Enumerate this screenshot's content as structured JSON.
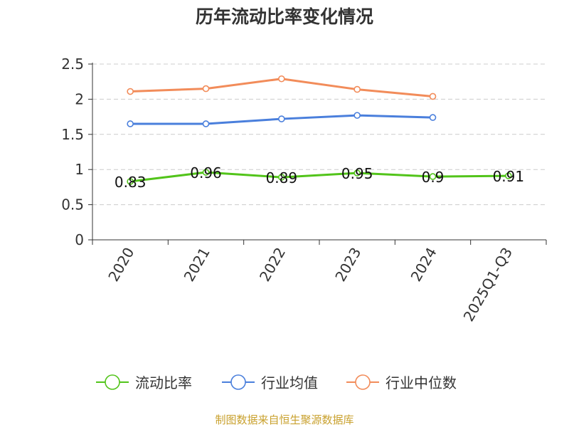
{
  "chart_data": {
    "type": "line",
    "title": "历年流动比率变化情况",
    "categories": [
      "2020",
      "2021",
      "2022",
      "2023",
      "2024",
      "2025Q1-Q3"
    ],
    "ylim": [
      0,
      2.5
    ],
    "yticks": [
      "0",
      "0.5",
      "1",
      "1.5",
      "2",
      "2.5"
    ],
    "ytick_values": [
      0,
      0.5,
      1,
      1.5,
      2,
      2.5
    ],
    "grid": true,
    "legend_position": "bottom",
    "series": [
      {
        "name": "流动比率",
        "color": "#52c41a",
        "values": [
          0.83,
          0.96,
          0.89,
          0.95,
          0.9,
          0.91
        ],
        "labels": [
          "0.83",
          "0.96",
          "0.89",
          "0.95",
          "0.9",
          "0.91"
        ]
      },
      {
        "name": "行业均值",
        "color": "#4a7fdc",
        "values": [
          1.65,
          1.65,
          1.72,
          1.77,
          1.74,
          null
        ]
      },
      {
        "name": "行业中位数",
        "color": "#f28c5a",
        "values": [
          2.11,
          2.15,
          2.29,
          2.14,
          2.04,
          null
        ]
      }
    ],
    "source": "制图数据来自恒生聚源数据库"
  }
}
